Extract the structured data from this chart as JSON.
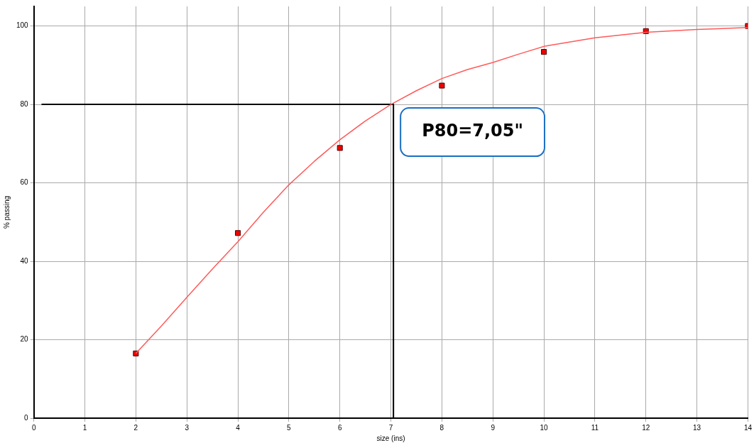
{
  "chart_data": {
    "type": "scatter",
    "xlabel": "size (ins)",
    "ylabel": "% passing",
    "xlim": [
      0,
      14
    ],
    "ylim": [
      0,
      105
    ],
    "xticks": [
      0,
      1,
      2,
      3,
      4,
      5,
      6,
      7,
      8,
      9,
      10,
      11,
      12,
      13,
      14
    ],
    "yticks": [
      0,
      20,
      40,
      60,
      80,
      100
    ],
    "grid": true,
    "legend": false,
    "marker": "square",
    "series": [
      {
        "type": "line",
        "color": "#ff5a5a",
        "marker": "none",
        "x": [
          2,
          2.5,
          3,
          3.5,
          4,
          4.5,
          5,
          5.5,
          6,
          6.5,
          7,
          7.5,
          8,
          8.5,
          9,
          9.5,
          10,
          11,
          12,
          13,
          14
        ],
        "values": [
          16.5,
          23.5,
          30.8,
          38,
          45,
          52.5,
          59.5,
          65.5,
          71,
          75.8,
          80,
          83.5,
          86.6,
          88.9,
          90.7,
          92.8,
          94.8,
          97,
          98.4,
          99.1,
          99.6
        ]
      },
      {
        "type": "line",
        "color": "#000000",
        "marker": "none",
        "x": [
          0.15,
          7.05,
          7.05
        ],
        "values": [
          80,
          80,
          0
        ]
      },
      {
        "color": "#ee0000",
        "x": [
          2,
          4,
          6,
          8,
          10,
          12,
          14
        ],
        "values": [
          16.5,
          47.2,
          68.9,
          84.8,
          93.4,
          98.7,
          100
        ]
      }
    ],
    "annotations": [
      {
        "text": "P80=7,05\"",
        "x": 7.05,
        "y": 80
      }
    ]
  }
}
